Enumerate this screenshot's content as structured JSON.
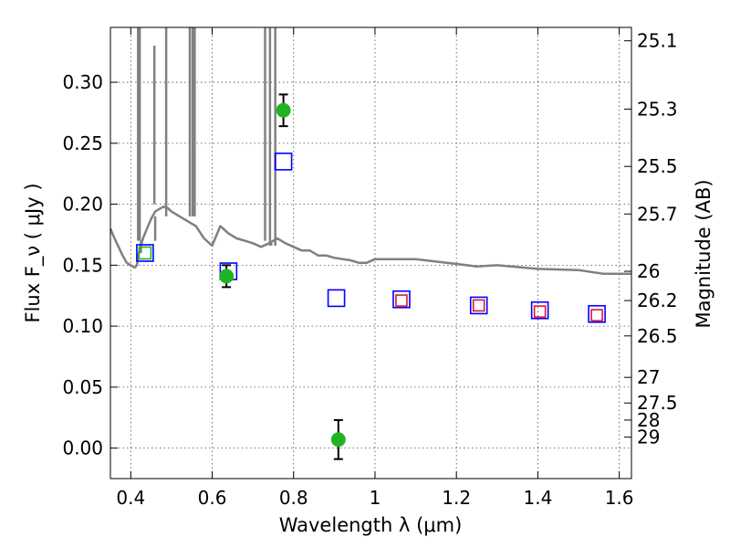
{
  "chart_data": {
    "type": "scatter",
    "xlabel": "Wavelength  λ (μm)",
    "ylabel": "Flux  F_ν  ( μJy )",
    "ylabel_right": "Magnitude (AB)",
    "xlim": [
      0.35,
      1.63
    ],
    "ylim": [
      -0.025,
      0.345
    ],
    "grid": true,
    "x_ticks": [
      0.4,
      0.6,
      0.8,
      1.0,
      1.2,
      1.4,
      1.6
    ],
    "x_tick_labels": [
      "0.4",
      "0.6",
      "0.8",
      "1",
      "1.2",
      "1.4",
      "1.6"
    ],
    "y_ticks": [
      0.0,
      0.05,
      0.1,
      0.15,
      0.2,
      0.25,
      0.3
    ],
    "y_tick_labels": [
      "0.00",
      "0.05",
      "0.10",
      "0.15",
      "0.20",
      "0.25",
      "0.30"
    ],
    "right_ticks": [
      {
        "label": "25.1",
        "flux": 0.334
      },
      {
        "label": "25.3",
        "flux": 0.278
      },
      {
        "label": "25.5",
        "flux": 0.231
      },
      {
        "label": "25.7",
        "flux": 0.192
      },
      {
        "label": "26",
        "flux": 0.145
      },
      {
        "label": "26.2",
        "flux": 0.121
      },
      {
        "label": "26.5",
        "flux": 0.092
      },
      {
        "label": "27",
        "flux": 0.058
      },
      {
        "label": "27.5",
        "flux": 0.037
      },
      {
        "label": "28",
        "flux": 0.023
      },
      {
        "label": "29",
        "flux": 0.009
      }
    ],
    "series": [
      {
        "kind": "model_spectrum",
        "color": "#808080",
        "x": [
          0.35,
          0.36,
          0.37,
          0.38,
          0.39,
          0.4,
          0.41,
          0.415,
          0.42,
          0.43,
          0.44,
          0.45,
          0.46,
          0.47,
          0.48,
          0.49,
          0.5,
          0.52,
          0.54,
          0.56,
          0.58,
          0.6,
          0.62,
          0.64,
          0.66,
          0.68,
          0.7,
          0.72,
          0.74,
          0.76,
          0.78,
          0.8,
          0.82,
          0.84,
          0.86,
          0.88,
          0.9,
          0.92,
          0.94,
          0.96,
          0.98,
          1.0,
          1.04,
          1.1,
          1.2,
          1.25,
          1.3,
          1.4,
          1.5,
          1.56,
          1.6,
          1.63
        ],
        "y": [
          0.18,
          0.172,
          0.165,
          0.158,
          0.152,
          0.15,
          0.148,
          0.15,
          0.16,
          0.172,
          0.18,
          0.188,
          0.194,
          0.196,
          0.198,
          0.197,
          0.194,
          0.19,
          0.186,
          0.182,
          0.172,
          0.166,
          0.182,
          0.176,
          0.172,
          0.17,
          0.168,
          0.165,
          0.168,
          0.172,
          0.168,
          0.165,
          0.162,
          0.162,
          0.158,
          0.158,
          0.156,
          0.155,
          0.154,
          0.152,
          0.152,
          0.155,
          0.155,
          0.155,
          0.151,
          0.149,
          0.15,
          0.147,
          0.146,
          0.143,
          0.143,
          0.143
        ],
        "spikes": [
          {
            "x": 0.418,
            "y0": 0.17,
            "y1": 0.345
          },
          {
            "x": 0.422,
            "y0": 0.17,
            "y1": 0.345
          },
          {
            "x": 0.458,
            "y0": 0.2,
            "y1": 0.33
          },
          {
            "x": 0.487,
            "y0": 0.2,
            "y1": 0.345
          },
          {
            "x": 0.545,
            "y0": 0.19,
            "y1": 0.345
          },
          {
            "x": 0.552,
            "y0": 0.19,
            "y1": 0.345
          },
          {
            "x": 0.557,
            "y0": 0.19,
            "y1": 0.345
          },
          {
            "x": 0.73,
            "y0": 0.17,
            "y1": 0.345
          },
          {
            "x": 0.742,
            "y0": 0.17,
            "y1": 0.345
          },
          {
            "x": 0.755,
            "y0": 0.17,
            "y1": 0.345
          }
        ],
        "dips": [
          {
            "x": 0.425,
            "y0": 0.16,
            "y1": 0.17
          },
          {
            "x": 0.46,
            "y0": 0.17,
            "y1": 0.19
          },
          {
            "x": 0.487,
            "y0": 0.19,
            "y1": 0.2
          },
          {
            "x": 0.745,
            "y0": 0.166,
            "y1": 0.17
          },
          {
            "x": 0.742,
            "y0": 0.166,
            "y1": 0.17
          },
          {
            "x": 0.755,
            "y0": 0.166,
            "y1": 0.17
          }
        ]
      },
      {
        "kind": "measured_flux",
        "marker": "circle",
        "color": "#22b322",
        "points": [
          {
            "x": 0.635,
            "y": 0.141,
            "err": 0.009
          },
          {
            "x": 0.775,
            "y": 0.277,
            "err": 0.013
          },
          {
            "x": 0.91,
            "y": 0.007,
            "err": 0.016
          }
        ]
      },
      {
        "kind": "band_flux",
        "marker": "square",
        "color": "#0000ff",
        "points": [
          {
            "x": 0.435,
            "y": 0.16
          },
          {
            "x": 0.64,
            "y": 0.145
          },
          {
            "x": 0.775,
            "y": 0.235
          },
          {
            "x": 0.905,
            "y": 0.123
          },
          {
            "x": 1.065,
            "y": 0.122
          },
          {
            "x": 1.255,
            "y": 0.117
          },
          {
            "x": 1.405,
            "y": 0.113
          },
          {
            "x": 1.545,
            "y": 0.11
          }
        ]
      },
      {
        "kind": "model_flux",
        "marker": "square",
        "color": "#dc143c",
        "points": [
          {
            "x": 1.065,
            "y": 0.121
          },
          {
            "x": 1.255,
            "y": 0.117
          },
          {
            "x": 1.405,
            "y": 0.112
          },
          {
            "x": 1.545,
            "y": 0.109
          }
        ]
      },
      {
        "kind": "model_flux_short",
        "marker": "square",
        "color": "#22b322",
        "points": [
          {
            "x": 0.435,
            "y": 0.16
          }
        ]
      }
    ]
  }
}
